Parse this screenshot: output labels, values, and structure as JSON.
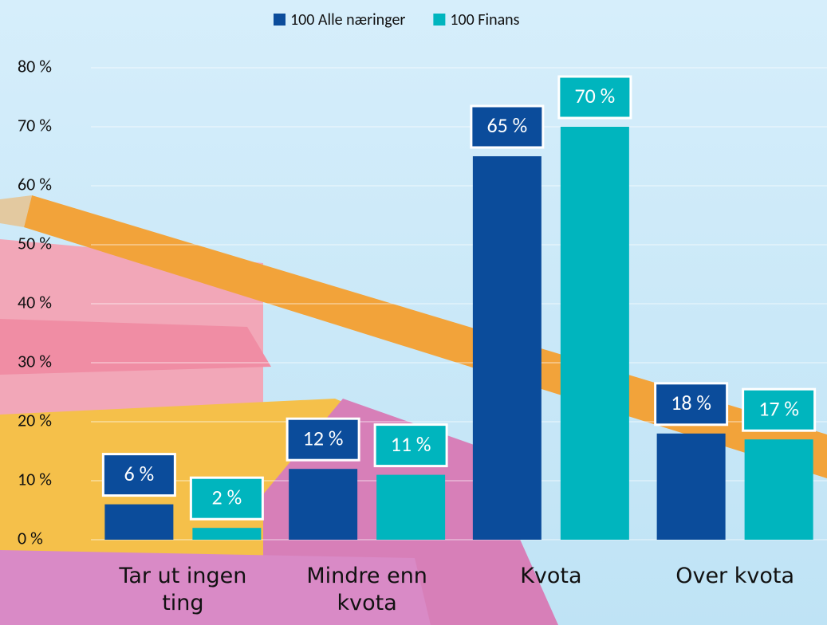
{
  "chart_data": {
    "type": "bar",
    "categories": [
      "Tar ut ingen ting",
      "Mindre enn kvota",
      "Kvota",
      "Over kvota"
    ],
    "series": [
      {
        "name": "100 Alle næringer",
        "color": "#0b4c9b",
        "values": [
          6,
          12,
          65,
          18
        ],
        "value_labels": [
          "6 %",
          "12 %",
          "65 %",
          "18 %"
        ]
      },
      {
        "name": "100 Finans",
        "color": "#00b5be",
        "values": [
          2,
          11,
          70,
          17
        ],
        "value_labels": [
          "2 %",
          "11 %",
          "70 %",
          "17 %"
        ]
      }
    ],
    "ylim": [
      0,
      80
    ],
    "yticks": [
      {
        "value": 0,
        "label": "0 %"
      },
      {
        "value": 10,
        "label": "10 %"
      },
      {
        "value": 20,
        "label": "20 %"
      },
      {
        "value": 30,
        "label": "30 %"
      },
      {
        "value": 40,
        "label": "40 %"
      },
      {
        "value": 50,
        "label": "50 %"
      },
      {
        "value": 60,
        "label": "60 %"
      },
      {
        "value": 70,
        "label": "70 %"
      },
      {
        "value": 80,
        "label": "80 %"
      }
    ],
    "grid": true,
    "legend": "top"
  }
}
